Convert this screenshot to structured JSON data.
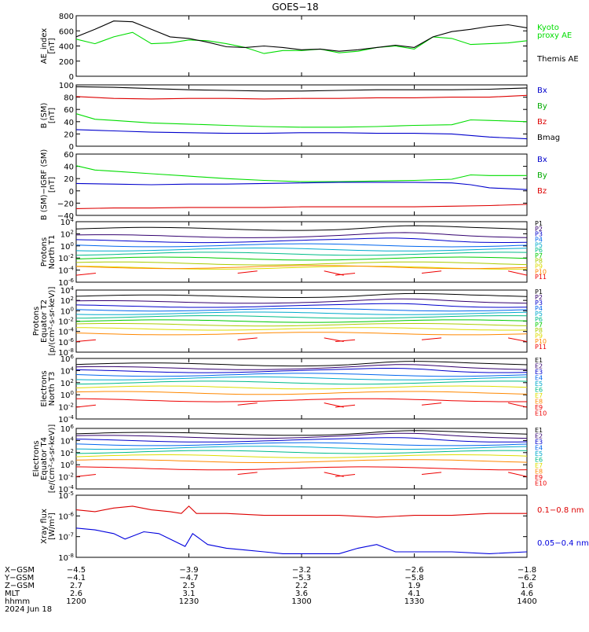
{
  "title": "GOES−18",
  "chart_data": [
    {
      "id": "ae",
      "type": "line",
      "ylabel": "AE_index\n[nT]",
      "yticks": [
        "800",
        "600",
        "400",
        "200",
        "0"
      ],
      "ylim": [
        0,
        800
      ],
      "log": false,
      "series": [
        {
          "name": "Kyoto proxy AE",
          "color": "#00dd00",
          "x": [
            1200,
            1205,
            1210,
            1215,
            1220,
            1225,
            1230,
            1235,
            1240,
            1245,
            1250,
            1255,
            1300,
            1305,
            1310,
            1315,
            1320,
            1325,
            1330,
            1335,
            1340,
            1345,
            1350,
            1355,
            1400
          ],
          "y": [
            490,
            430,
            520,
            580,
            430,
            440,
            480,
            470,
            430,
            380,
            300,
            340,
            340,
            360,
            310,
            330,
            380,
            400,
            360,
            520,
            500,
            420,
            430,
            440,
            470
          ]
        },
        {
          "name": "Themis AE",
          "color": "#000000",
          "x": [
            1200,
            1205,
            1210,
            1215,
            1220,
            1225,
            1230,
            1235,
            1240,
            1245,
            1250,
            1255,
            1300,
            1305,
            1310,
            1315,
            1320,
            1325,
            1330,
            1335,
            1340,
            1345,
            1350,
            1355,
            1400
          ],
          "y": [
            520,
            620,
            730,
            720,
            620,
            520,
            500,
            450,
            390,
            380,
            400,
            380,
            350,
            360,
            330,
            350,
            380,
            410,
            380,
            520,
            590,
            620,
            660,
            680,
            640
          ]
        }
      ],
      "legend": [
        {
          "text": "Kyoto",
          "color": "#00dd00"
        },
        {
          "text": "proxy AE",
          "color": "#00dd00"
        },
        {
          "text": "Themis AE",
          "color": "#000000"
        }
      ]
    },
    {
      "id": "bsm",
      "type": "line",
      "ylabel": "B (SM)\n[nT]",
      "yticks": [
        "100",
        "80",
        "60",
        "40",
        "20",
        "0"
      ],
      "ylim": [
        0,
        100
      ],
      "log": false,
      "series": [
        {
          "name": "Bmag",
          "color": "#000000",
          "x": [
            1200,
            1210,
            1220,
            1230,
            1240,
            1250,
            1300,
            1310,
            1320,
            1330,
            1340,
            1350,
            1400
          ],
          "y": [
            97,
            96,
            94,
            92,
            91,
            90,
            90,
            91,
            92,
            92,
            92,
            93,
            95
          ]
        },
        {
          "name": "Bz",
          "color": "#dd0000",
          "x": [
            1200,
            1210,
            1220,
            1230,
            1240,
            1250,
            1300,
            1310,
            1320,
            1330,
            1340,
            1350,
            1400
          ],
          "y": [
            81,
            78,
            77,
            78,
            78,
            77,
            78,
            78,
            79,
            79,
            80,
            80,
            83
          ]
        },
        {
          "name": "By",
          "color": "#00dd00",
          "x": [
            1200,
            1205,
            1210,
            1220,
            1230,
            1240,
            1250,
            1300,
            1310,
            1320,
            1330,
            1340,
            1345,
            1350,
            1400
          ],
          "y": [
            53,
            44,
            42,
            38,
            36,
            34,
            32,
            31,
            31,
            32,
            34,
            35,
            43,
            42,
            40
          ]
        },
        {
          "name": "Bx",
          "color": "#0000cc",
          "x": [
            1200,
            1210,
            1220,
            1230,
            1240,
            1250,
            1300,
            1310,
            1320,
            1330,
            1340,
            1350,
            1400
          ],
          "y": [
            27,
            25,
            23,
            22,
            21,
            21,
            22,
            22,
            21,
            21,
            20,
            15,
            12
          ]
        }
      ],
      "legend": [
        {
          "text": "Bx",
          "color": "#0000cc"
        },
        {
          "text": "By",
          "color": "#00aa00"
        },
        {
          "text": "Bz",
          "color": "#dd0000"
        },
        {
          "text": "Bmag",
          "color": "#000000"
        }
      ]
    },
    {
      "id": "bigrf",
      "type": "line",
      "ylabel": "B (SM)−IGRF (SM)\n[nT]",
      "yticks": [
        "60",
        "40",
        "20",
        "0",
        "−20",
        "−40"
      ],
      "ylim": [
        -40,
        60
      ],
      "log": false,
      "series": [
        {
          "name": "By",
          "color": "#00dd00",
          "x": [
            1200,
            1205,
            1210,
            1220,
            1230,
            1240,
            1250,
            1300,
            1310,
            1320,
            1330,
            1340,
            1345,
            1350,
            1400
          ],
          "y": [
            41,
            34,
            32,
            28,
            24,
            20,
            17,
            15,
            15,
            16,
            17,
            19,
            26,
            25,
            25
          ]
        },
        {
          "name": "Bx",
          "color": "#0000cc",
          "x": [
            1200,
            1210,
            1220,
            1230,
            1240,
            1250,
            1300,
            1310,
            1320,
            1330,
            1340,
            1345,
            1350,
            1400
          ],
          "y": [
            12,
            11,
            10,
            11,
            11,
            12,
            13,
            14,
            14,
            14,
            13,
            10,
            5,
            2
          ]
        },
        {
          "name": "Bz",
          "color": "#dd0000",
          "x": [
            1200,
            1210,
            1220,
            1230,
            1240,
            1250,
            1300,
            1310,
            1320,
            1330,
            1340,
            1350,
            1400
          ],
          "y": [
            -29,
            -28,
            -28,
            -27,
            -27,
            -27,
            -26,
            -26,
            -26,
            -26,
            -25,
            -24,
            -22
          ]
        }
      ],
      "legend": [
        {
          "text": "Bx",
          "color": "#0000cc"
        },
        {
          "text": "By",
          "color": "#00aa00"
        },
        {
          "text": "Bz",
          "color": "#dd0000"
        }
      ]
    },
    {
      "id": "pnorth",
      "type": "line",
      "ylabel": "Protons\nNorth T1",
      "yticks": [
        "10^4",
        "10^2",
        "10^0",
        "10^-2",
        "10^-4",
        "10^-6"
      ],
      "ylim": [
        -6,
        4
      ],
      "log": true,
      "channels": [
        "P1",
        "P2",
        "P3",
        "P4",
        "P5",
        "P6",
        "P7",
        "P8",
        "P9",
        "P10",
        "P11"
      ],
      "channel_colors": [
        "#000000",
        "#33006f",
        "#0000cc",
        "#0066ee",
        "#00aacc",
        "#00bb88",
        "#00cc00",
        "#aacc00",
        "#dddd00",
        "#ff8800",
        "#ee0000"
      ],
      "levels": [
        2.8,
        1.6,
        0.8,
        0.1,
        -0.6,
        -1.3,
        -2.1,
        -2.9,
        -3.6,
        -3.5,
        -4.5
      ],
      "gap_channel_index": 10
    },
    {
      "id": "pequator",
      "type": "line",
      "ylabel": "Protons\nEquator T2\n[p/(cm²-s-sr-keV)]",
      "yticks": [
        "10^4",
        "10^2",
        "10^0",
        "10^-2",
        "10^-4",
        "10^-6",
        "10^-8"
      ],
      "ylim": [
        -8,
        4
      ],
      "log": true,
      "channels": [
        "P1",
        "P2",
        "P3",
        "P4",
        "P5",
        "P6",
        "P7",
        "P8",
        "P9",
        "P10",
        "P11"
      ],
      "channel_colors": [
        "#000000",
        "#33006f",
        "#0000cc",
        "#0066ee",
        "#00aacc",
        "#00bb88",
        "#00cc00",
        "#aacc00",
        "#dddd00",
        "#ff8800",
        "#ee0000"
      ],
      "levels": [
        2.8,
        1.7,
        0.9,
        0.2,
        -0.5,
        -1.2,
        -2.0,
        -2.7,
        -3.5,
        -4.4,
        -5.6
      ],
      "gap_channel_index": 10
    },
    {
      "id": "enorth",
      "type": "line",
      "ylabel": "Electrons\nNorth T3",
      "yticks": [
        "10^6",
        "10^4",
        "10^2",
        "10^0",
        "10^-2",
        "10^-4"
      ],
      "ylim": [
        -4,
        6
      ],
      "log": true,
      "channels": [
        "E1",
        "E2",
        "E3",
        "E4",
        "E5",
        "E6",
        "E7",
        "E8",
        "E9",
        "E10"
      ],
      "channel_colors": [
        "#000000",
        "#33006f",
        "#0000cc",
        "#0066ee",
        "#00aacc",
        "#00bb88",
        "#dddd00",
        "#ff8800",
        "#ee0000",
        "#ee0000"
      ],
      "levels": [
        5.0,
        4.4,
        3.9,
        3.3,
        2.7,
        2.0,
        1.2,
        0.3,
        -0.9,
        -1.7
      ],
      "gap_channel_index": 9
    },
    {
      "id": "eequator",
      "type": "line",
      "ylabel": "Electrons\nEquator T4\n[e/(cm²-s-sr-keV)]",
      "yticks": [
        "10^6",
        "10^4",
        "10^2",
        "10^0",
        "10^-2",
        "10^-4"
      ],
      "ylim": [
        -4,
        6
      ],
      "log": true,
      "channels": [
        "E1",
        "E2",
        "E3",
        "E4",
        "E5",
        "E6",
        "E7",
        "E8",
        "E9",
        "E10"
      ],
      "channel_colors": [
        "#000000",
        "#33006f",
        "#0000cc",
        "#0066ee",
        "#00aacc",
        "#00bb88",
        "#dddd00",
        "#ff8800",
        "#ee0000",
        "#ee0000"
      ],
      "levels": [
        5.1,
        4.6,
        4.0,
        3.4,
        2.8,
        2.1,
        1.4,
        0.6,
        -0.6,
        -1.6
      ],
      "gap_channel_index": 9
    },
    {
      "id": "xray",
      "type": "line",
      "ylabel": "Xray flux\n[W/m²]",
      "yticks": [
        "10^-5",
        "10^-6",
        "10^-7",
        "10^-8"
      ],
      "ylim": [
        -8.2,
        -4.8
      ],
      "log": true,
      "series": [
        {
          "name": "0.1−0.8 nm",
          "color": "#dd0000",
          "x": [
            1200,
            1205,
            1210,
            1215,
            1220,
            1225,
            1228,
            1230,
            1232,
            1240,
            1250,
            1300,
            1310,
            1320,
            1330,
            1340,
            1350,
            1400
          ],
          "y": [
            -5.6,
            -5.7,
            -5.5,
            -5.4,
            -5.6,
            -5.7,
            -5.8,
            -5.4,
            -5.8,
            -5.8,
            -5.9,
            -5.9,
            -5.9,
            -6.0,
            -5.9,
            -5.9,
            -5.8,
            -5.8
          ]
        },
        {
          "name": "0.05−0.4 nm",
          "color": "#0000dd",
          "x": [
            1200,
            1205,
            1210,
            1213,
            1218,
            1222,
            1226,
            1229,
            1231,
            1235,
            1240,
            1245,
            1250,
            1255,
            1300,
            1310,
            1315,
            1320,
            1325,
            1330,
            1340,
            1350,
            1400
          ],
          "y": [
            -6.6,
            -6.7,
            -6.9,
            -7.2,
            -6.8,
            -6.9,
            -7.3,
            -7.6,
            -6.9,
            -7.5,
            -7.7,
            -7.8,
            -7.9,
            -8.0,
            -8.0,
            -8.0,
            -7.7,
            -7.5,
            -7.9,
            -7.9,
            -7.9,
            -8.0,
            -7.9
          ]
        }
      ],
      "legend": [
        {
          "text": "0.1−0.8 nm",
          "color": "#dd0000"
        },
        {
          "text": "0.05−0.4 nm",
          "color": "#0000dd"
        }
      ]
    }
  ],
  "x_axis": {
    "xlim": [
      1200,
      1400
    ],
    "tick_values": [
      1200,
      1230,
      1300,
      1330,
      1400
    ],
    "row_labels": [
      "X−GSM",
      "Y−GSM",
      "Z−GSM",
      "MLT",
      "hhmm",
      "2024 Jun 18"
    ],
    "columns": [
      [
        "−4.5",
        "−4.1",
        "2.7",
        "2.6",
        "1200"
      ],
      [
        "−3.9",
        "−4.7",
        "2.5",
        "3.1",
        "1230"
      ],
      [
        "−3.2",
        "−5.3",
        "2.2",
        "3.6",
        "1300"
      ],
      [
        "−2.6",
        "−5.8",
        "1.9",
        "4.1",
        "1330"
      ],
      [
        "−1.8",
        "−6.2",
        "1.6",
        "4.6",
        "1400"
      ]
    ]
  }
}
